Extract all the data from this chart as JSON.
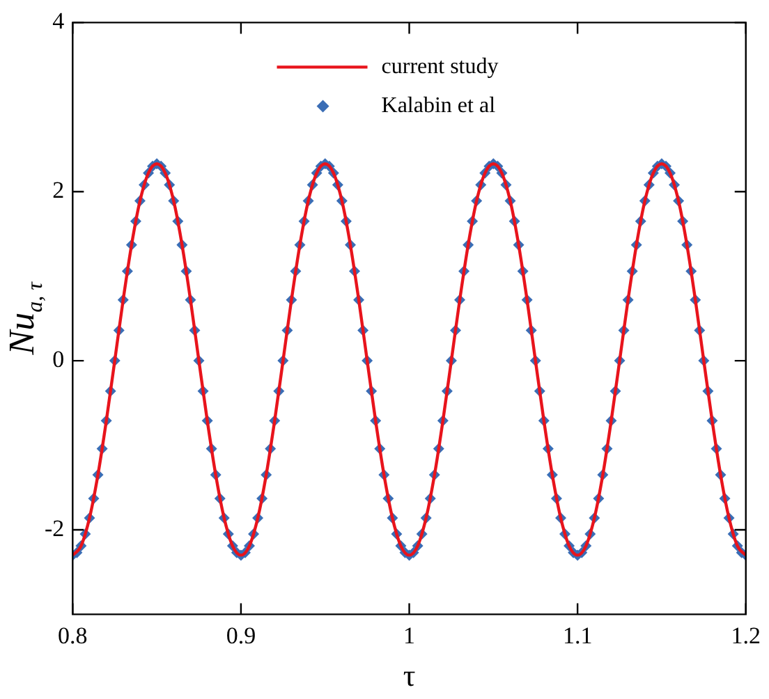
{
  "chart_data": {
    "type": "line",
    "xlabel": "τ",
    "ylabel": "Nu$_{a, τ}$",
    "xlim": [
      0.8,
      1.2
    ],
    "ylim": [
      -3,
      4
    ],
    "xticks": [
      0.8,
      0.9,
      1,
      1.1,
      1.2
    ],
    "yticks": [
      -2,
      0,
      2,
      4
    ],
    "grid": false,
    "legend": "top",
    "series": [
      {
        "name": "current study",
        "type": "line",
        "color": "#e8141c",
        "marker": "none",
        "line_style": "solid",
        "x": [
          0.8,
          0.805,
          0.81,
          0.815,
          0.82,
          0.825,
          0.83,
          0.835,
          0.84,
          0.845,
          0.85,
          0.855,
          0.86,
          0.865,
          0.87,
          0.875,
          0.88,
          0.885,
          0.89,
          0.895,
          0.9,
          0.905,
          0.91,
          0.915,
          0.92,
          0.925,
          0.93,
          0.935,
          0.94,
          0.945,
          0.95,
          0.955,
          0.96,
          0.965,
          0.97,
          0.975,
          0.98,
          0.985,
          0.99,
          0.995,
          1,
          1.005,
          1.01,
          1.015,
          1.02,
          1.025,
          1.03,
          1.035,
          1.04,
          1.045,
          1.05,
          1.055,
          1.06,
          1.065,
          1.07,
          1.075,
          1.08,
          1.085,
          1.09,
          1.095,
          1.1,
          1.105,
          1.11,
          1.115,
          1.12,
          1.125,
          1.13,
          1.135,
          1.14,
          1.145,
          1.15,
          1.155,
          1.16,
          1.165,
          1.17,
          1.175,
          1.18,
          1.185,
          1.19,
          1.195,
          1.2
        ],
        "values": [
          -2.3,
          -2.19,
          -1.86,
          -1.35,
          -0.71,
          0,
          0.72,
          1.37,
          1.89,
          2.22,
          2.33,
          2.22,
          1.89,
          1.37,
          0.72,
          0,
          -0.71,
          -1.35,
          -1.86,
          -2.19,
          -2.3,
          -2.19,
          -1.86,
          -1.35,
          -0.71,
          0,
          0.72,
          1.37,
          1.89,
          2.22,
          2.33,
          2.22,
          1.89,
          1.37,
          0.72,
          0,
          -0.71,
          -1.35,
          -1.86,
          -2.19,
          -2.3,
          -2.19,
          -1.86,
          -1.35,
          -0.71,
          0,
          0.72,
          1.37,
          1.89,
          2.22,
          2.33,
          2.22,
          1.89,
          1.37,
          0.72,
          0,
          -0.71,
          -1.35,
          -1.86,
          -2.19,
          -2.3,
          -2.19,
          -1.86,
          -1.35,
          -0.71,
          0,
          0.72,
          1.37,
          1.89,
          2.22,
          2.33,
          2.22,
          1.89,
          1.37,
          0.72,
          0,
          -0.71,
          -1.35,
          -1.86,
          -2.19,
          -2.3
        ]
      },
      {
        "name": "Kalabin et al",
        "type": "scatter",
        "color": "#3a6db5",
        "marker": "diamond",
        "x": [
          0.8,
          0.8025,
          0.805,
          0.8075,
          0.81,
          0.8125,
          0.815,
          0.8175,
          0.82,
          0.8225,
          0.825,
          0.8275,
          0.83,
          0.8325,
          0.835,
          0.8375,
          0.84,
          0.8425,
          0.845,
          0.8475,
          0.85,
          0.8525,
          0.855,
          0.8575,
          0.86,
          0.8625,
          0.865,
          0.8675,
          0.87,
          0.8725,
          0.875,
          0.8775,
          0.88,
          0.8825,
          0.885,
          0.8875,
          0.89,
          0.8925,
          0.895,
          0.8975,
          0.9,
          0.9025,
          0.905,
          0.9075,
          0.91,
          0.9125,
          0.915,
          0.9175,
          0.92,
          0.9225,
          0.925,
          0.9275,
          0.93,
          0.9325,
          0.935,
          0.9375,
          0.94,
          0.9425,
          0.945,
          0.9475,
          0.95,
          0.9525,
          0.955,
          0.9575,
          0.96,
          0.9625,
          0.965,
          0.9675,
          0.97,
          0.9725,
          0.975,
          0.9775,
          0.98,
          0.9825,
          0.985,
          0.9875,
          0.99,
          0.9925,
          0.995,
          0.9975,
          1,
          1.0025,
          1.005,
          1.0075,
          1.01,
          1.0125,
          1.015,
          1.0175,
          1.02,
          1.0225,
          1.025,
          1.0275,
          1.03,
          1.0325,
          1.035,
          1.0375,
          1.04,
          1.0425,
          1.045,
          1.0475,
          1.05,
          1.0525,
          1.055,
          1.0575,
          1.06,
          1.0625,
          1.065,
          1.0675,
          1.07,
          1.0725,
          1.075,
          1.0775,
          1.08,
          1.0825,
          1.085,
          1.0875,
          1.09,
          1.0925,
          1.095,
          1.0975,
          1.1,
          1.1025,
          1.105,
          1.1075,
          1.11,
          1.1125,
          1.115,
          1.1175,
          1.12,
          1.1225,
          1.125,
          1.1275,
          1.13,
          1.1325,
          1.135,
          1.1375,
          1.14,
          1.1425,
          1.145,
          1.1475,
          1.15,
          1.1525,
          1.155,
          1.1575,
          1.16,
          1.1625,
          1.165,
          1.1675,
          1.17,
          1.1725,
          1.175,
          1.1775,
          1.18,
          1.1825,
          1.185,
          1.1875,
          1.19,
          1.1925,
          1.195,
          1.1975,
          1.2
        ],
        "values": [
          -2.3,
          -2.27,
          -2.19,
          -2.05,
          -1.86,
          -1.63,
          -1.35,
          -1.04,
          -0.71,
          -0.36,
          0,
          0.36,
          0.72,
          1.06,
          1.37,
          1.65,
          1.89,
          2.08,
          2.22,
          2.3,
          2.33,
          2.3,
          2.22,
          2.08,
          1.89,
          1.65,
          1.37,
          1.06,
          0.72,
          0.36,
          0,
          -0.36,
          -0.71,
          -1.04,
          -1.35,
          -1.63,
          -1.86,
          -2.05,
          -2.19,
          -2.27,
          -2.3,
          -2.27,
          -2.19,
          -2.05,
          -1.86,
          -1.63,
          -1.35,
          -1.04,
          -0.71,
          -0.36,
          0,
          0.36,
          0.72,
          1.06,
          1.37,
          1.65,
          1.89,
          2.08,
          2.22,
          2.3,
          2.33,
          2.3,
          2.22,
          2.08,
          1.89,
          1.65,
          1.37,
          1.06,
          0.72,
          0.36,
          0,
          -0.36,
          -0.71,
          -1.04,
          -1.35,
          -1.63,
          -1.86,
          -2.05,
          -2.19,
          -2.27,
          -2.3,
          -2.27,
          -2.19,
          -2.05,
          -1.86,
          -1.63,
          -1.35,
          -1.04,
          -0.71,
          -0.36,
          0,
          0.36,
          0.72,
          1.06,
          1.37,
          1.65,
          1.89,
          2.08,
          2.22,
          2.3,
          2.33,
          2.3,
          2.22,
          2.08,
          1.89,
          1.65,
          1.37,
          1.06,
          0.72,
          0.36,
          0,
          -0.36,
          -0.71,
          -1.04,
          -1.35,
          -1.63,
          -1.86,
          -2.05,
          -2.19,
          -2.27,
          -2.3,
          -2.27,
          -2.19,
          -2.05,
          -1.86,
          -1.63,
          -1.35,
          -1.04,
          -0.71,
          -0.36,
          0,
          0.36,
          0.72,
          1.06,
          1.37,
          1.65,
          1.89,
          2.08,
          2.22,
          2.3,
          2.33,
          2.3,
          2.22,
          2.08,
          1.89,
          1.65,
          1.37,
          1.06,
          0.72,
          0.36,
          0,
          -0.36,
          -0.71,
          -1.04,
          -1.35,
          -1.63,
          -1.86,
          -2.05,
          -2.19,
          -2.27,
          -2.3
        ]
      }
    ]
  }
}
